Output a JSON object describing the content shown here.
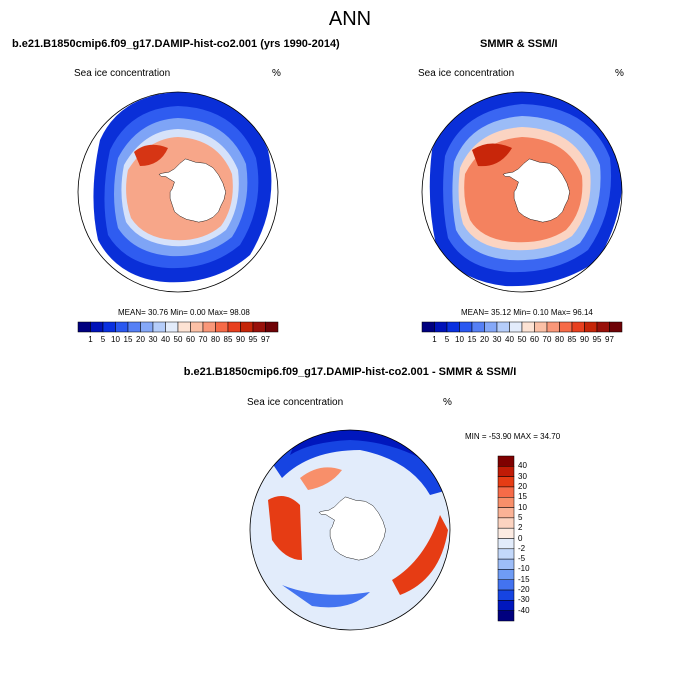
{
  "title": "ANN",
  "panels": [
    {
      "run_title": "b.e21.B1850cmip6.f09_g17.DAMIP-hist-co2.001 (yrs 1990-2014)",
      "field": "Sea ice concentration",
      "units": "%",
      "stats": "MEAN=  30.76  Min=   0.00  Max=  98.08"
    },
    {
      "run_title": "SMMR & SSM/I",
      "field": "Sea ice concentration",
      "units": "%",
      "stats": "MEAN=  35.12  Min=   0.10  Max=  96.14"
    }
  ],
  "colorbar_levels": [
    "1",
    "5",
    "10",
    "15",
    "20",
    "30",
    "40",
    "50",
    "60",
    "70",
    "80",
    "85",
    "90",
    "95",
    "97"
  ],
  "colorbar_colors": [
    "#00007f",
    "#0012b8",
    "#0930e0",
    "#2a58f0",
    "#5680f5",
    "#85a8f8",
    "#b5cdfa",
    "#e3ecfb",
    "#fde3d4",
    "#fbc0a6",
    "#f99779",
    "#f66b48",
    "#e8401f",
    "#c52508",
    "#98100a",
    "#6e0206"
  ],
  "diff": {
    "title": "b.e21.B1850cmip6.f09_g17.DAMIP-hist-co2.001 - SMMR & SSM/I",
    "field": "Sea ice concentration",
    "units": "%",
    "stats": "MIN = -53.90 MAX =  34.70",
    "levels": [
      "40",
      "30",
      "20",
      "15",
      "10",
      "5",
      "2",
      "0",
      "-2",
      "-5",
      "-10",
      "-15",
      "-20",
      "-30",
      "-40"
    ],
    "colors": [
      "#7f0000",
      "#c01b06",
      "#e63c14",
      "#f66b48",
      "#f88f6a",
      "#fab296",
      "#fcd3c0",
      "#fcebe2",
      "#e2ecfb",
      "#c3d8fa",
      "#9dbdf8",
      "#6f9cf5",
      "#4373f0",
      "#1644e2",
      "#0017bd",
      "#00007f"
    ]
  }
}
